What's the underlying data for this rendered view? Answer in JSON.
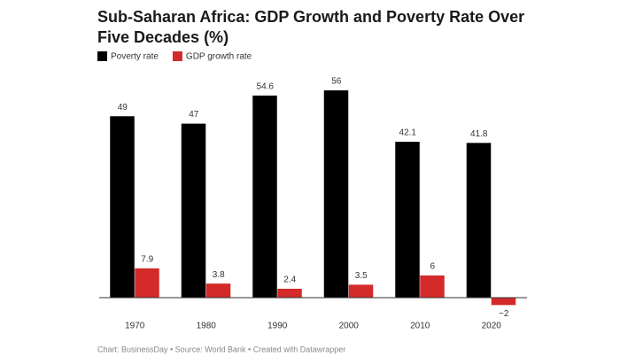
{
  "chart_data": {
    "type": "grouped-bar",
    "title": "Sub-Saharan Africa: GDP Growth and Poverty Rate Over Five Decades (%)",
    "categories": [
      "1970",
      "1980",
      "1990",
      "2000",
      "2010",
      "2020"
    ],
    "series": [
      {
        "name": "Poverty rate",
        "color": "#000000",
        "values": [
          49,
          47,
          54.6,
          56,
          42.1,
          41.8
        ]
      },
      {
        "name": "GDP growth rate",
        "color": "#d42a2a",
        "values": [
          7.9,
          3.8,
          2.4,
          3.5,
          6,
          -2
        ],
        "value_labels": [
          "7.9",
          "3.8",
          "2.4",
          "3.5",
          "6",
          "−2"
        ]
      }
    ],
    "footer": "Chart: BusinessDay • Source: World Bank • Created with Datawrapper"
  }
}
